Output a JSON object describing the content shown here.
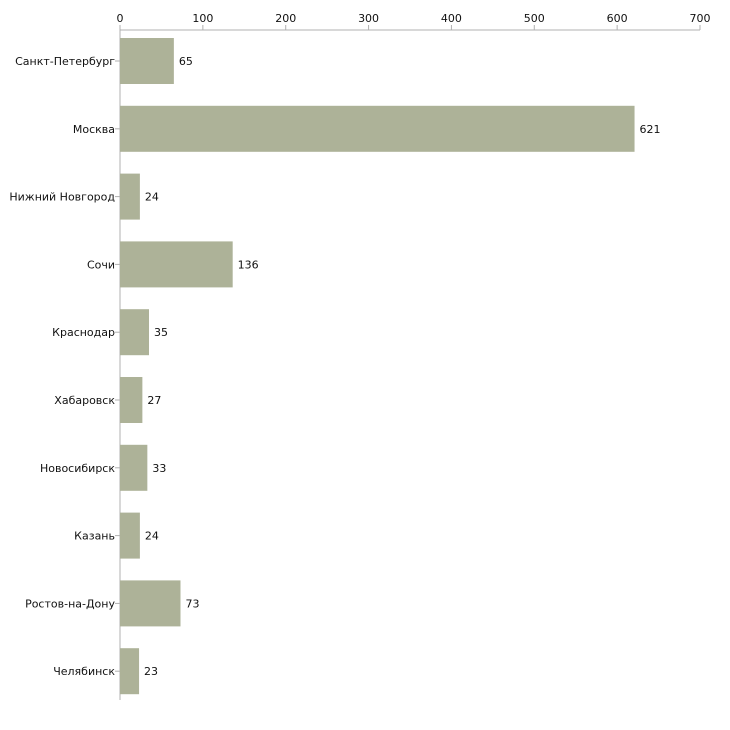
{
  "chart_data": {
    "type": "bar",
    "orientation": "horizontal",
    "title": "",
    "xlabel": "",
    "ylabel": "",
    "categories": [
      "Санкт-Петербург",
      "Москва",
      "Нижний Новгород",
      "Сочи",
      "Краснодар",
      "Хабаровск",
      "Новосибирск",
      "Казань",
      "Ростов-на-Дону",
      "Челябинск"
    ],
    "values": [
      65,
      621,
      24,
      136,
      35,
      27,
      33,
      24,
      73,
      23
    ],
    "xlim": [
      0,
      700
    ],
    "xticks": [
      0,
      100,
      200,
      300,
      400,
      500,
      600,
      700
    ],
    "x_axis_position": "top",
    "grid": false,
    "legend": "none",
    "bar_color": "#adb298"
  }
}
